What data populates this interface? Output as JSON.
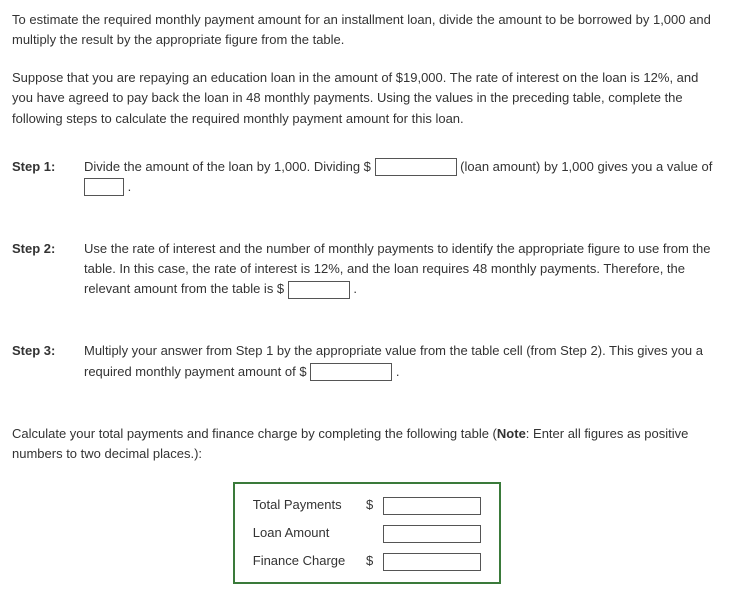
{
  "intro": {
    "p1": "To estimate the required monthly payment amount for an installment loan, divide the amount to be borrowed by 1,000 and multiply the result by the appropriate figure from the table.",
    "p2": "Suppose that you are repaying an education loan in the amount of $19,000. The rate of interest on the loan is 12%, and you have agreed to pay back the loan in 48 monthly payments. Using the values in the preceding table, complete the following steps to calculate the required monthly payment amount for this loan."
  },
  "steps": {
    "step1": {
      "label": "Step 1:",
      "text_a": "Divide the amount of the loan by 1,000. Dividing $",
      "text_b": " (loan amount) by 1,000 gives you a value of ",
      "text_c": " ."
    },
    "step2": {
      "label": "Step 2:",
      "text_a": "Use the rate of interest and the number of monthly payments to identify the appropriate figure to use from the table. In this case, the rate of interest is 12%, and the loan requires 48 monthly payments. Therefore, the relevant amount from the table is $ ",
      "text_b": " ."
    },
    "step3": {
      "label": "Step 3:",
      "text_a": "Multiply your answer from Step 1 by the appropriate value from the table cell (from Step 2). This gives you a required monthly payment amount of $ ",
      "text_b": " ."
    }
  },
  "calc_intro_a": "Calculate your total payments and finance charge by completing the following table (",
  "calc_intro_note_label": "Note",
  "calc_intro_b": ": Enter all figures as positive numbers to two decimal places.):",
  "table": {
    "rows": [
      {
        "label": "Total Payments",
        "currency": "$"
      },
      {
        "label": "Loan Amount",
        "currency": ""
      },
      {
        "label": "Finance Charge",
        "currency": "$"
      }
    ]
  }
}
